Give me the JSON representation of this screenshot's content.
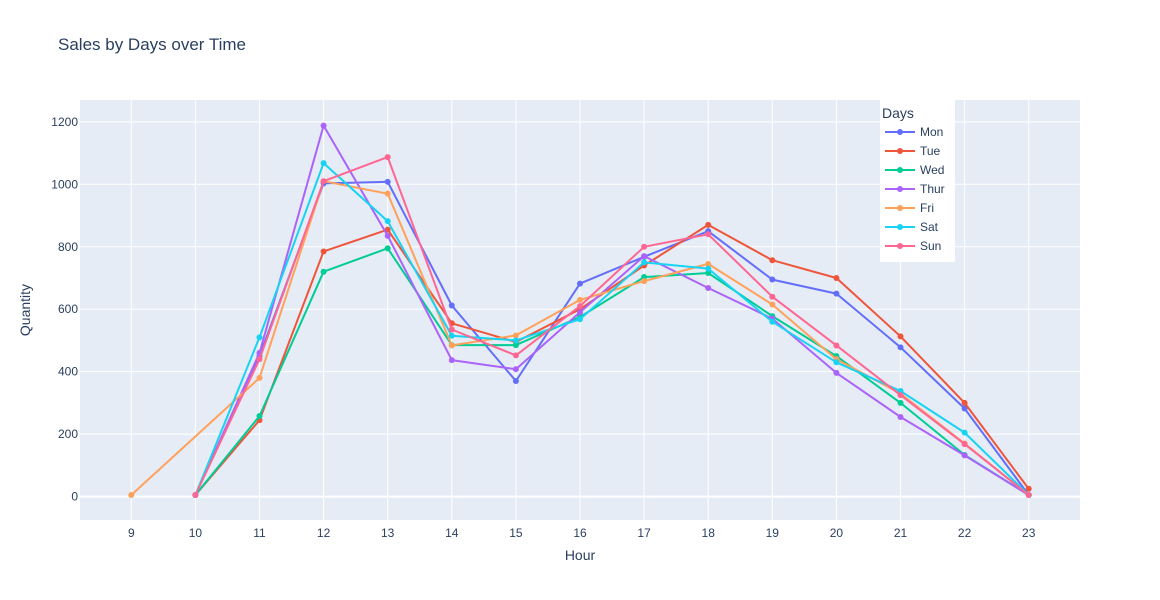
{
  "chart_data": {
    "type": "line",
    "title": "Sales by Days over Time",
    "xlabel": "Hour",
    "ylabel": "Quantity",
    "xlim": [
      8.2,
      23.8
    ],
    "ylim": [
      -75,
      1270
    ],
    "x_ticks": [
      9,
      10,
      11,
      12,
      13,
      14,
      15,
      16,
      17,
      18,
      19,
      20,
      21,
      22,
      23
    ],
    "y_ticks": [
      0,
      200,
      400,
      600,
      800,
      1000,
      1200
    ],
    "grid": true,
    "legend": {
      "title": "Days",
      "position": "top-right"
    },
    "colors": {
      "plot_bg": "#e5ecf6",
      "grid": "#ffffff",
      "text": "#2a3f5f"
    },
    "series": [
      {
        "name": "Mon",
        "color": "#636efa",
        "x": [
          10,
          11,
          12,
          13,
          14,
          15,
          16,
          17,
          18,
          19,
          20,
          21,
          22,
          23
        ],
        "y": [
          5,
          450,
          1003,
          1008,
          612,
          370,
          682,
          768,
          850,
          695,
          650,
          478,
          282,
          5
        ]
      },
      {
        "name": "Tue",
        "color": "#ef553b",
        "x": [
          10,
          11,
          12,
          13,
          14,
          15,
          16,
          17,
          18,
          19,
          20,
          21,
          22,
          23
        ],
        "y": [
          5,
          245,
          785,
          855,
          555,
          495,
          600,
          740,
          870,
          757,
          700,
          513,
          300,
          25
        ]
      },
      {
        "name": "Wed",
        "color": "#00cc96",
        "x": [
          10,
          11,
          12,
          13,
          14,
          15,
          16,
          17,
          18,
          19,
          20,
          21,
          22,
          23
        ],
        "y": [
          5,
          258,
          720,
          795,
          485,
          485,
          575,
          703,
          716,
          578,
          450,
          300,
          133,
          5
        ]
      },
      {
        "name": "Thur",
        "color": "#ab63fa",
        "x": [
          10,
          11,
          12,
          13,
          14,
          15,
          16,
          17,
          18,
          19,
          20,
          21,
          22,
          23
        ],
        "y": [
          5,
          460,
          1188,
          835,
          437,
          408,
          590,
          770,
          668,
          570,
          396,
          255,
          132,
          5
        ]
      },
      {
        "name": "Fri",
        "color": "#ffa15a",
        "x": [
          9,
          11,
          12,
          13,
          14,
          15,
          16,
          17,
          18,
          19,
          20,
          21,
          22,
          23
        ],
        "y": [
          5,
          380,
          1010,
          970,
          484,
          516,
          630,
          690,
          745,
          615,
          440,
          330,
          170,
          5
        ]
      },
      {
        "name": "Sat",
        "color": "#19d3f3",
        "x": [
          10,
          11,
          12,
          13,
          14,
          15,
          16,
          17,
          18,
          19,
          20,
          21,
          22,
          23
        ],
        "y": [
          5,
          510,
          1068,
          882,
          515,
          500,
          568,
          750,
          730,
          560,
          430,
          338,
          205,
          5
        ]
      },
      {
        "name": "Sun",
        "color": "#ff6692",
        "x": [
          10,
          11,
          12,
          13,
          14,
          15,
          16,
          17,
          18,
          19,
          20,
          21,
          22,
          23
        ],
        "y": [
          5,
          440,
          1010,
          1087,
          535,
          452,
          610,
          800,
          840,
          640,
          484,
          325,
          168,
          5
        ]
      }
    ]
  }
}
